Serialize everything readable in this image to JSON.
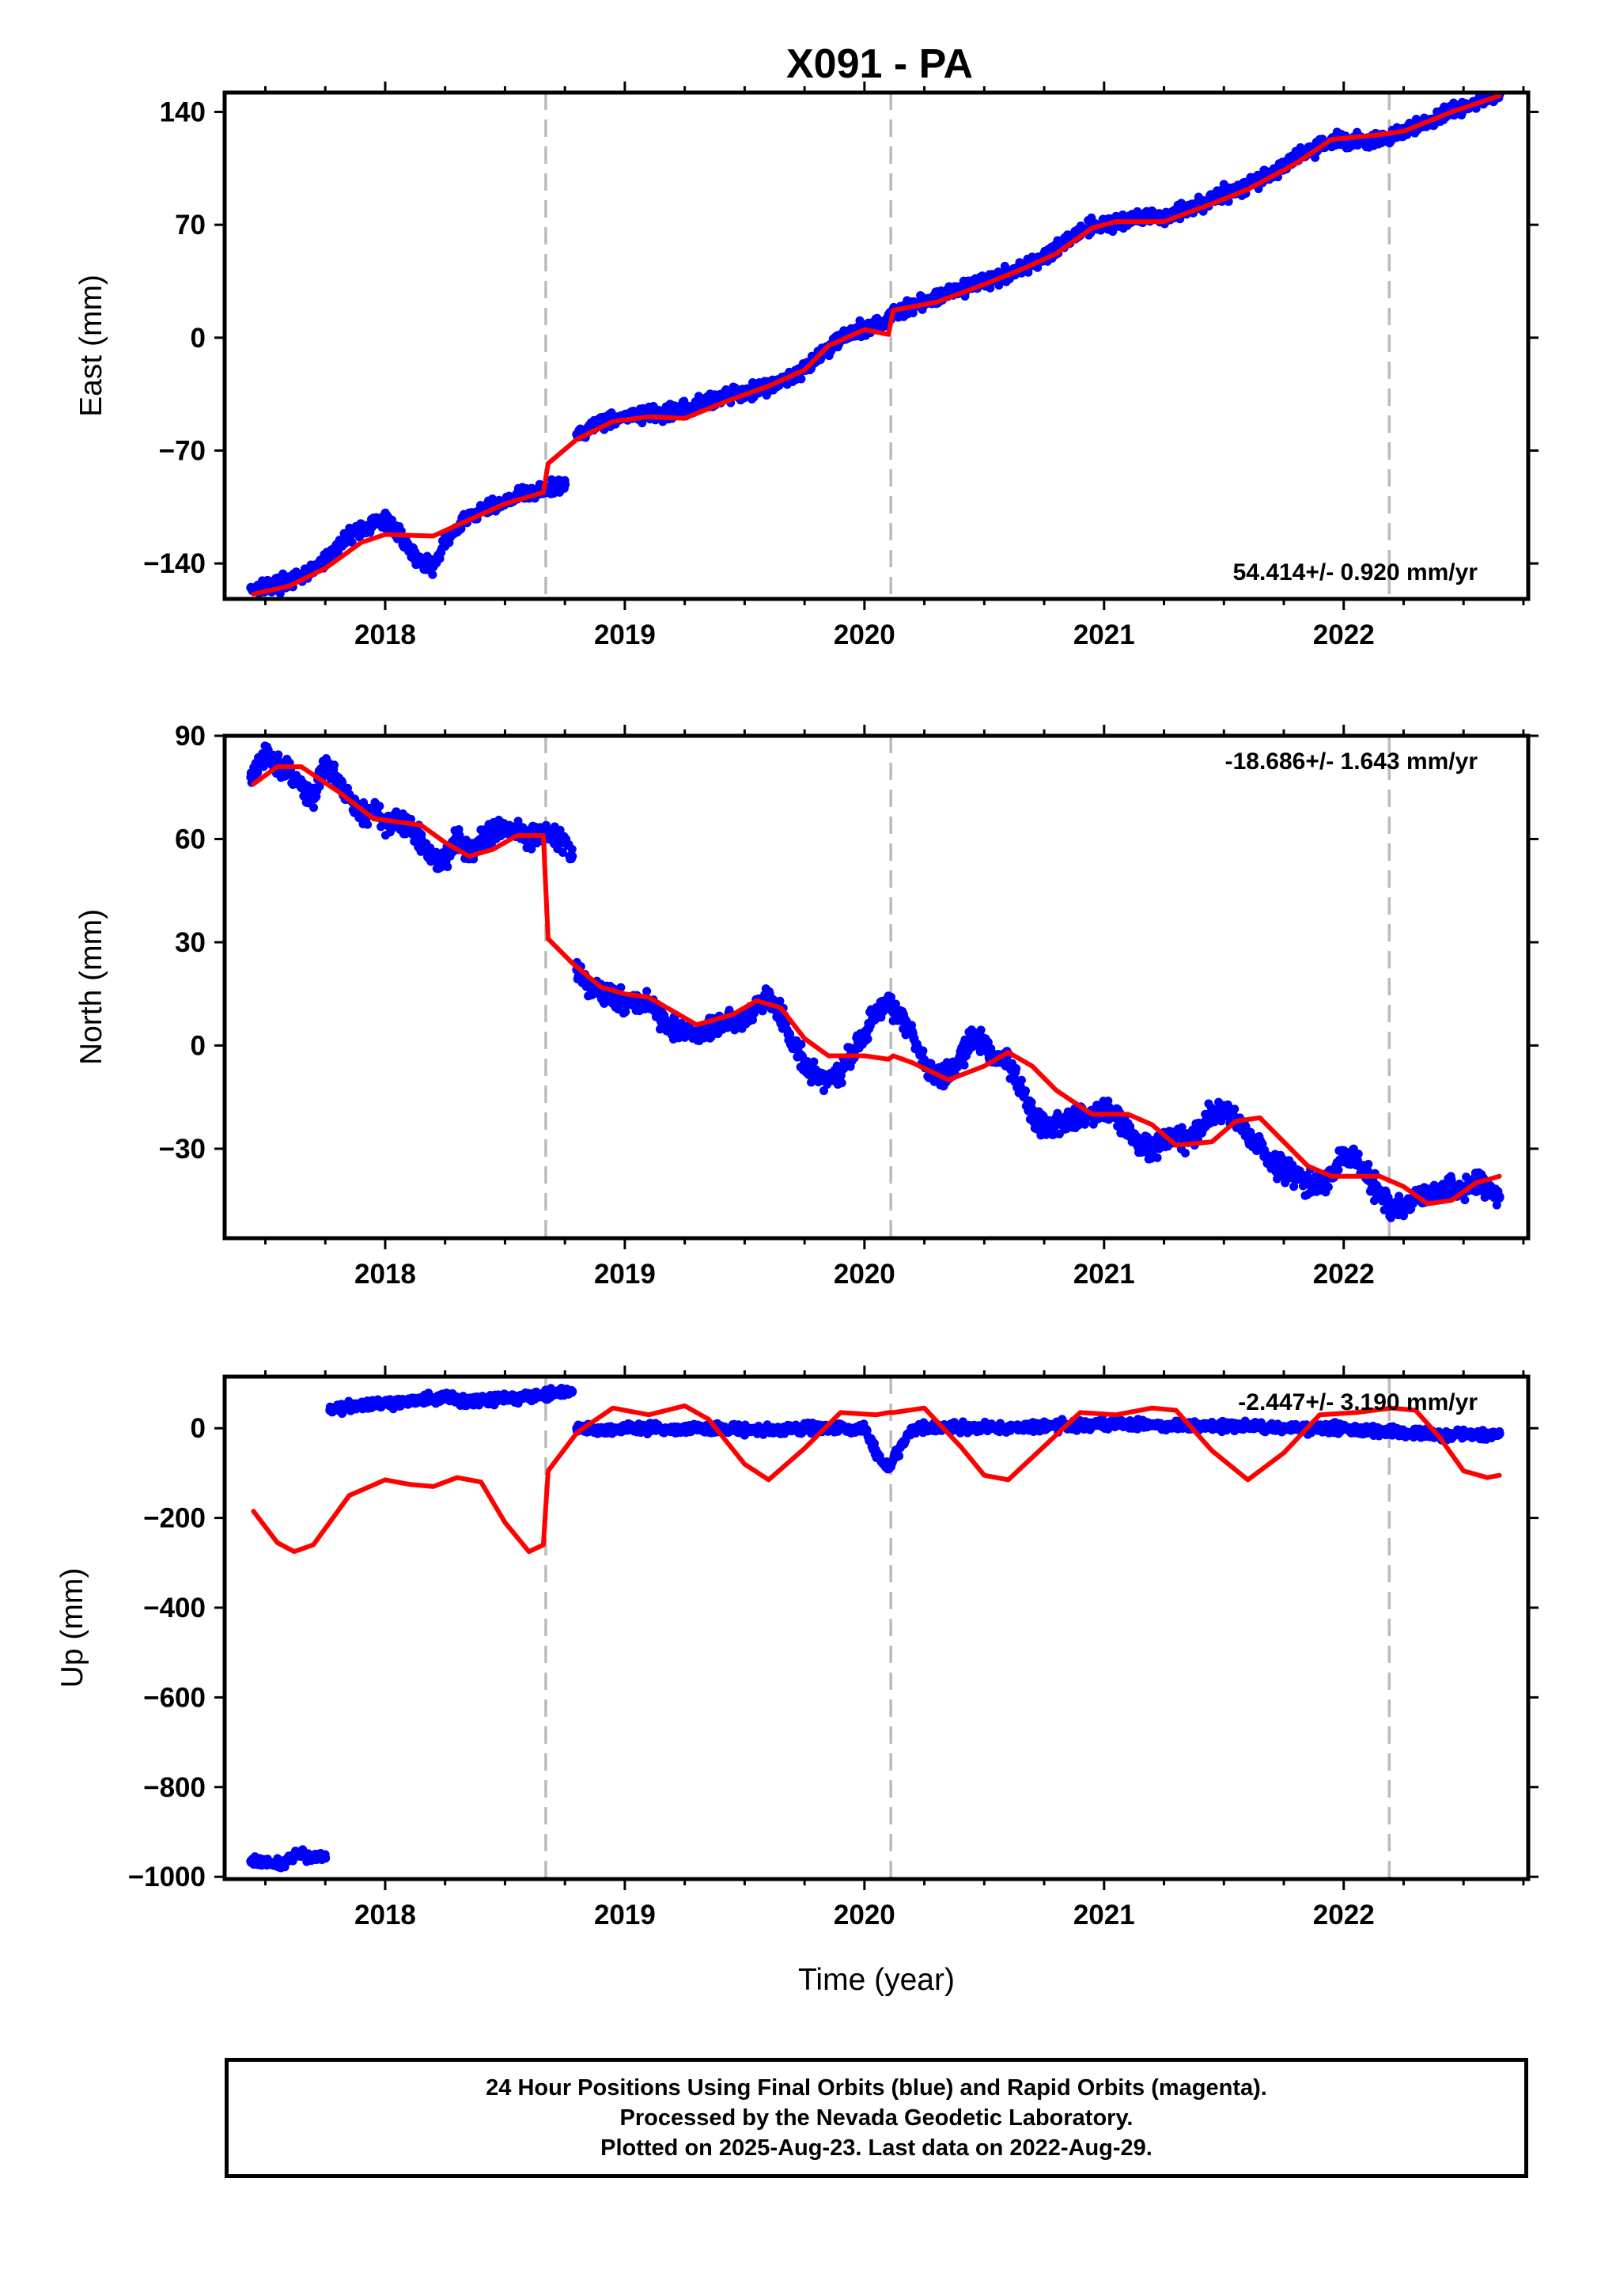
{
  "title": "X091 - PA",
  "footer": {
    "line1": "24 Hour Positions Using Final Orbits (blue) and Rapid Orbits (magenta).",
    "line2": "Processed by the Nevada Geodetic Laboratory.",
    "line3": "Plotted on 2025-Aug-23. Last data on 2022-Aug-29."
  },
  "chart_data": [
    {
      "type": "scatter",
      "ylabel": "East (mm)",
      "xlabel": "",
      "xlim": [
        2017.33,
        2022.77
      ],
      "ylim": [
        -162,
        152
      ],
      "xticks": [
        2018,
        2019,
        2020,
        2021,
        2022
      ],
      "xtick_labels": [
        "2018",
        "2019",
        "2020",
        "2021",
        "2022"
      ],
      "yticks": [
        -140,
        -70,
        0,
        70,
        140
      ],
      "ytick_labels": [
        "−140",
        "−70",
        "0",
        "70",
        "140"
      ],
      "rate_label": "54.414+/- 0.920 mm/yr",
      "rate_position": "bottom-right",
      "event_lines": [
        2018.67,
        2020.11,
        2022.19
      ],
      "series": [
        {
          "kind": "points",
          "color": "#0000ff",
          "segments": [
            {
              "x": [
                2017.44,
                2017.55,
                2017.65,
                2017.75,
                2017.85,
                2017.95,
                2018.0,
                2018.05,
                2018.1,
                2018.15,
                2018.2,
                2018.25,
                2018.35,
                2018.45,
                2018.55,
                2018.65,
                2018.75
              ],
              "y": [
                -155,
                -153,
                -149,
                -138,
                -122,
                -116,
                -113,
                -120,
                -131,
                -139,
                -142,
                -126,
                -111,
                -104,
                -98,
                -95,
                -91
              ]
            },
            {
              "x": [
                2018.8,
                2018.9,
                2019.0,
                2019.1,
                2019.2,
                2019.3,
                2019.4,
                2019.5,
                2019.6,
                2019.7,
                2019.8,
                2019.9,
                2020.0,
                2020.08,
                2020.15,
                2020.25,
                2020.35,
                2020.45,
                2020.55,
                2020.65,
                2020.75,
                2020.85,
                2020.95,
                2021.05,
                2021.15,
                2021.25,
                2021.35,
                2021.45,
                2021.55,
                2021.65,
                2021.75,
                2021.85,
                2021.95,
                2022.05,
                2022.15,
                2022.25,
                2022.35,
                2022.45,
                2022.55,
                2022.65
              ],
              "y": [
                -60,
                -52,
                -49,
                -48,
                -47,
                -42,
                -36,
                -34,
                -30,
                -24,
                -13,
                0,
                6,
                10,
                17,
                22,
                28,
                33,
                37,
                42,
                50,
                62,
                69,
                71,
                74,
                75,
                80,
                86,
                92,
                98,
                107,
                116,
                122,
                122,
                123,
                127,
                134,
                140,
                146,
                151
              ]
            }
          ]
        },
        {
          "kind": "model",
          "color": "#ff0000",
          "segments": [
            {
              "x": [
                2017.45,
                2017.6,
                2017.75,
                2017.9,
                2018.0,
                2018.2,
                2018.35,
                2018.5,
                2018.66
              ],
              "y": [
                -159,
                -154,
                -143,
                -127,
                -122,
                -123,
                -113,
                -103,
                -96
              ]
            },
            {
              "x": [
                2018.68,
                2018.8,
                2018.95,
                2019.1,
                2019.25,
                2019.45,
                2019.6,
                2019.75,
                2019.85,
                2020.0,
                2020.1
              ],
              "y": [
                -78,
                -63,
                -52,
                -49,
                -50,
                -38,
                -30,
                -20,
                -5,
                5,
                2
              ]
            },
            {
              "x": [
                2020.12,
                2020.3,
                2020.5,
                2020.65,
                2020.8,
                2020.95,
                2021.05,
                2021.25,
                2021.45,
                2021.6,
                2021.8,
                2021.95,
                2022.1,
                2022.25,
                2022.45,
                2022.65
              ],
              "y": [
                17,
                22,
                33,
                42,
                52,
                68,
                72,
                72,
                83,
                92,
                108,
                123,
                125,
                128,
                140,
                150
              ]
            }
          ]
        }
      ]
    },
    {
      "type": "scatter",
      "ylabel": "North (mm)",
      "xlabel": "",
      "xlim": [
        2017.33,
        2022.77
      ],
      "ylim": [
        -56,
        90
      ],
      "xticks": [
        2018,
        2019,
        2020,
        2021,
        2022
      ],
      "xtick_labels": [
        "2018",
        "2019",
        "2020",
        "2021",
        "2022"
      ],
      "yticks": [
        -30,
        0,
        30,
        60,
        90
      ],
      "ytick_labels": [
        "−30",
        "0",
        "30",
        "60",
        "90"
      ],
      "rate_label": "-18.686+/- 1.643 mm/yr",
      "rate_position": "top-right",
      "event_lines": [
        2018.67,
        2020.11,
        2022.19
      ],
      "series": [
        {
          "kind": "points",
          "color": "#0000ff",
          "segments": [
            {
              "x": [
                2017.44,
                2017.5,
                2017.55,
                2017.6,
                2017.65,
                2017.7,
                2017.75,
                2017.8,
                2017.85,
                2017.9,
                2017.95,
                2018.0,
                2018.1,
                2018.15,
                2018.2,
                2018.25,
                2018.3,
                2018.35,
                2018.4,
                2018.45,
                2018.5,
                2018.55,
                2018.6,
                2018.65,
                2018.7,
                2018.75,
                2018.78
              ],
              "y": [
                78,
                84,
                82,
                80,
                75,
                72,
                82,
                78,
                72,
                67,
                68,
                65,
                64,
                60,
                54,
                55,
                60,
                57,
                60,
                62,
                63,
                62,
                61,
                62,
                61,
                59,
                55
              ]
            },
            {
              "x": [
                2018.8,
                2018.85,
                2018.9,
                2019.0,
                2019.1,
                2019.2,
                2019.3,
                2019.4,
                2019.5,
                2019.55,
                2019.6,
                2019.65,
                2019.7,
                2019.75,
                2019.8,
                2019.85,
                2019.9,
                2019.95,
                2020.0,
                2020.05,
                2020.1,
                2020.15,
                2020.2,
                2020.25,
                2020.3,
                2020.35,
                2020.4,
                2020.45,
                2020.5,
                2020.55,
                2020.6,
                2020.65,
                2020.7,
                2020.75,
                2020.8,
                2020.85,
                2020.9,
                2020.95,
                2021.0,
                2021.05,
                2021.1,
                2021.15,
                2021.2,
                2021.25,
                2021.3,
                2021.35,
                2021.4,
                2021.45,
                2021.5,
                2021.55,
                2021.6,
                2021.65,
                2021.7,
                2021.75,
                2021.8,
                2021.85,
                2021.9,
                2021.95,
                2022.0,
                2022.05,
                2022.1,
                2022.15,
                2022.2,
                2022.25,
                2022.3,
                2022.35,
                2022.4,
                2022.45,
                2022.5,
                2022.55,
                2022.6,
                2022.65
              ],
              "y": [
                22,
                17,
                15,
                13,
                12,
                5,
                3,
                6,
                8,
                12,
                14,
                10,
                0,
                -5,
                -9,
                -10,
                -8,
                -2,
                3,
                10,
                12,
                8,
                3,
                -5,
                -9,
                -8,
                -3,
                2,
                0,
                -3,
                -5,
                -12,
                -20,
                -24,
                -23,
                -22,
                -21,
                -20,
                -18,
                -20,
                -25,
                -29,
                -30,
                -28,
                -26,
                -28,
                -24,
                -20,
                -19,
                -22,
                -26,
                -30,
                -34,
                -37,
                -38,
                -40,
                -40,
                -38,
                -32,
                -34,
                -39,
                -42,
                -47,
                -48,
                -43,
                -44,
                -43,
                -41,
                -42,
                -40,
                -41,
                -44
              ]
            }
          ]
        },
        {
          "kind": "model",
          "color": "#ff0000",
          "segments": [
            {
              "x": [
                2017.45,
                2017.55,
                2017.65,
                2017.8,
                2017.95,
                2018.05,
                2018.15,
                2018.25,
                2018.35,
                2018.45,
                2018.55,
                2018.66
              ],
              "y": [
                76,
                81,
                81,
                74,
                66,
                65,
                64,
                59,
                55,
                57,
                61,
                61
              ]
            },
            {
              "x": [
                2018.68,
                2018.78,
                2018.9,
                2019.0,
                2019.1,
                2019.2,
                2019.3,
                2019.45,
                2019.55,
                2019.65,
                2019.75,
                2019.85,
                2020.0,
                2020.1
              ],
              "y": [
                31,
                24,
                17,
                15,
                14,
                10,
                6,
                9,
                13,
                11,
                2,
                -3,
                -3,
                -4
              ]
            },
            {
              "x": [
                2020.12,
                2020.2,
                2020.35,
                2020.5,
                2020.6,
                2020.7,
                2020.8,
                2020.95,
                2021.1,
                2021.2,
                2021.3,
                2021.45,
                2021.55,
                2021.65,
                2021.75,
                2021.85,
                2021.95,
                2022.05,
                2022.15,
                2022.25,
                2022.35,
                2022.45,
                2022.55,
                2022.65
              ],
              "y": [
                -3,
                -5,
                -10,
                -6,
                -2,
                -6,
                -13,
                -20,
                -20,
                -23,
                -29,
                -28,
                -22,
                -21,
                -28,
                -35,
                -38,
                -38,
                -38,
                -41,
                -46,
                -45,
                -40,
                -38
              ]
            }
          ]
        }
      ]
    },
    {
      "type": "scatter",
      "ylabel": "Up (mm)",
      "xlabel": "Time (year)",
      "xlim": [
        2017.33,
        2022.77
      ],
      "ylim": [
        -1005,
        115
      ],
      "xticks": [
        2018,
        2019,
        2020,
        2021,
        2022
      ],
      "xtick_labels": [
        "2018",
        "2019",
        "2020",
        "2021",
        "2022"
      ],
      "yticks": [
        -1000,
        -800,
        -600,
        -400,
        -200,
        0
      ],
      "ytick_labels": [
        "−1000",
        "−800",
        "−600",
        "−400",
        "−200",
        "0"
      ],
      "rate_label": "-2.447+/- 3.190 mm/yr",
      "rate_position": "top-right",
      "event_lines": [
        2018.67,
        2020.11,
        2022.19
      ],
      "series": [
        {
          "kind": "points",
          "color": "#0000ff",
          "segments": [
            {
              "x": [
                2017.44,
                2017.5,
                2017.55,
                2017.6,
                2017.65,
                2017.7,
                2017.75
              ],
              "y": [
                -965,
                -968,
                -975,
                -960,
                -948,
                -955,
                -958
              ]
            },
            {
              "x": [
                2017.77,
                2017.85,
                2017.95,
                2018.05,
                2018.15,
                2018.25,
                2018.35,
                2018.45,
                2018.55,
                2018.65,
                2018.78
              ],
              "y": [
                40,
                50,
                55,
                55,
                62,
                68,
                60,
                65,
                70,
                75,
                82
              ]
            },
            {
              "x": [
                2018.8,
                2018.9,
                2019.0,
                2019.2,
                2019.4,
                2019.6,
                2019.8,
                2020.0,
                2020.06,
                2020.1,
                2020.2,
                2020.4,
                2020.6,
                2020.8,
                2021.0,
                2021.2,
                2021.4,
                2021.6,
                2021.8,
                2022.0,
                2022.2,
                2022.4,
                2022.65
              ],
              "y": [
                0,
                -5,
                0,
                -2,
                0,
                -5,
                0,
                0,
                -65,
                -90,
                0,
                2,
                0,
                5,
                10,
                8,
                5,
                5,
                0,
                0,
                -10,
                -15,
                -12
              ]
            }
          ]
        },
        {
          "kind": "model",
          "color": "#ff0000",
          "segments": [
            {
              "x": [
                2017.45,
                2017.55,
                2017.62,
                2017.7,
                2017.85,
                2018.0,
                2018.1,
                2018.2,
                2018.3,
                2018.4,
                2018.5,
                2018.6,
                2018.66
              ],
              "y": [
                -185,
                -255,
                -275,
                -260,
                -150,
                -115,
                -125,
                -130,
                -110,
                -120,
                -210,
                -275,
                -260
              ]
            },
            {
              "x": [
                2018.68,
                2018.8,
                2018.95,
                2019.1,
                2019.25,
                2019.35,
                2019.5,
                2019.6,
                2019.75,
                2019.9,
                2020.05,
                2020.1
              ],
              "y": [
                -95,
                -10,
                45,
                30,
                50,
                20,
                -80,
                -115,
                -45,
                35,
                30,
                35
              ]
            },
            {
              "x": [
                2020.12,
                2020.25,
                2020.4,
                2020.5,
                2020.6,
                2020.75,
                2020.9,
                2021.05,
                2021.2,
                2021.3,
                2021.45,
                2021.6,
                2021.75,
                2021.9,
                2022.05,
                2022.2,
                2022.3,
                2022.4,
                2022.5,
                2022.6,
                2022.65
              ],
              "y": [
                35,
                45,
                -40,
                -105,
                -115,
                -40,
                35,
                30,
                45,
                40,
                -50,
                -115,
                -55,
                30,
                35,
                45,
                40,
                -20,
                -95,
                -110,
                -105
              ]
            }
          ]
        }
      ]
    }
  ]
}
